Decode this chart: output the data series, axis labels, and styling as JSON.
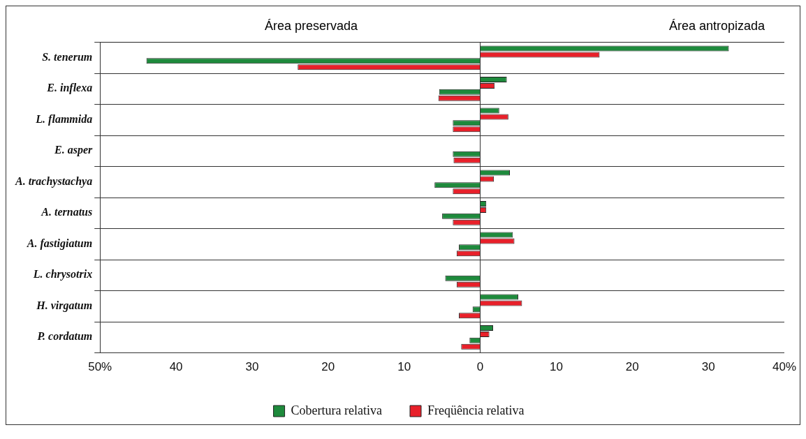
{
  "chart_data": {
    "type": "bar",
    "orientation": "horizontal",
    "annotations": [
      "Área preservada",
      "Área antropizada"
    ],
    "categories": [
      "S. tenerum",
      "E. inflexa",
      "L. flammida",
      "E. asper",
      "A. trachystachya",
      "A. ternatus",
      "A. fastigiatum",
      "L. chrysotrix",
      "H. virgatum",
      "P. cordatum"
    ],
    "series": [
      {
        "color": "#1e8a3c",
        "values": [
          32.7,
          3.5,
          2.5,
          null,
          3.9,
          0.8,
          4.3,
          null,
          5.0,
          1.7
        ]
      },
      {
        "color": "#e8202a",
        "values": [
          15.7,
          1.9,
          3.7,
          null,
          1.8,
          0.8,
          4.5,
          null,
          5.5,
          1.2
        ]
      },
      {
        "name": "Cobertura relativa",
        "color": "#1e8a3c",
        "values": [
          -43.9,
          -5.4,
          -3.6,
          -3.6,
          -6.0,
          -5.0,
          -2.8,
          -4.6,
          -1.0,
          -1.4
        ]
      },
      {
        "name": "Freqüência relativa",
        "color": "#e8202a",
        "values": [
          -24.0,
          -5.5,
          -3.6,
          -3.5,
          -3.6,
          -3.6,
          -3.1,
          -3.1,
          -2.8,
          -2.5
        ]
      }
    ],
    "xlim": [
      -50,
      40
    ],
    "xticks": [
      {
        "value": -50,
        "label": "50%"
      },
      {
        "value": -40,
        "label": "40"
      },
      {
        "value": -30,
        "label": "30"
      },
      {
        "value": -20,
        "label": "20"
      },
      {
        "value": -10,
        "label": "10"
      },
      0,
      10,
      20,
      30,
      {
        "value": 40,
        "label": "40%"
      }
    ],
    "ref_lines": [
      {
        "axis": "x",
        "value": 0
      }
    ],
    "grid": "y",
    "legend": "bottom"
  }
}
